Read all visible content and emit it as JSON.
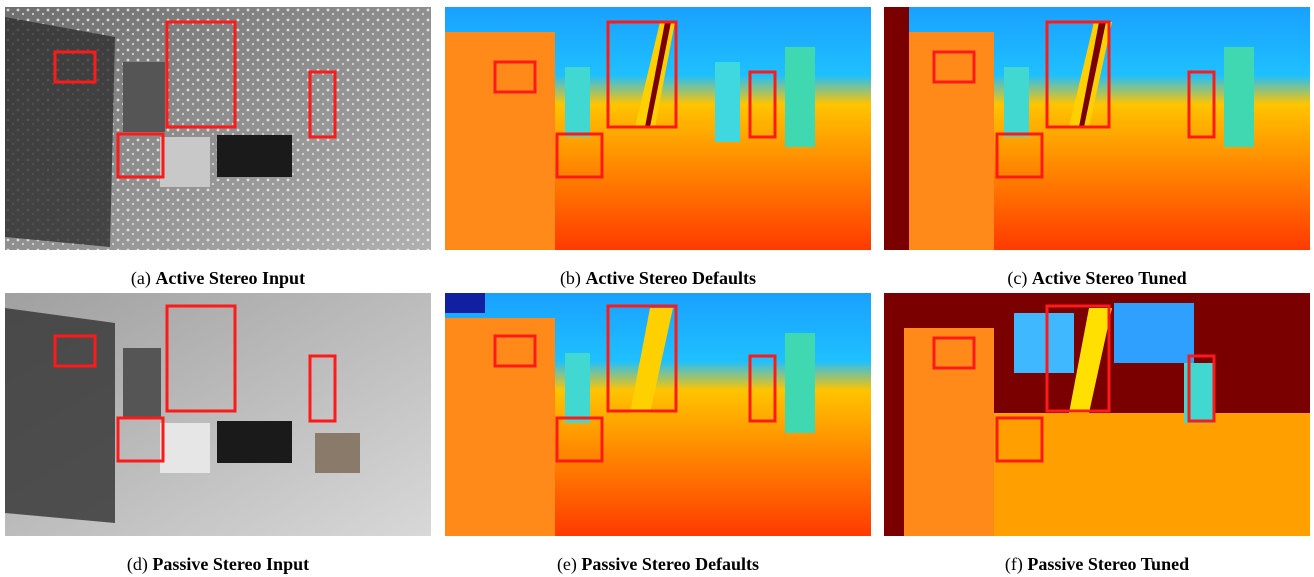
{
  "figure": {
    "panels": [
      {
        "id": "a",
        "prefix": "(a)",
        "title": "Active Stereo Input",
        "kind": "grayscale",
        "colors": {
          "base": "#8a8a8a",
          "highlight": "#ff1a1a"
        }
      },
      {
        "id": "b",
        "prefix": "(b)",
        "title": "Active Stereo Defaults",
        "kind": "depth-map"
      },
      {
        "id": "c",
        "prefix": "(c)",
        "title": "Active Stereo Tuned",
        "kind": "depth-map"
      },
      {
        "id": "d",
        "prefix": "(d)",
        "title": "Passive Stereo Input",
        "kind": "grayscale"
      },
      {
        "id": "e",
        "prefix": "(e)",
        "title": "Passive Stereo Defaults",
        "kind": "depth-map"
      },
      {
        "id": "f",
        "prefix": "(f)",
        "title": "Passive Stereo Tuned",
        "kind": "depth-map"
      }
    ],
    "colors": {
      "depth_near": "#ff3a00",
      "depth_mid": "#ffb000",
      "depth_far": "#1aa0ff",
      "invalid": "#7a0000",
      "highlight_box": "#ff1a1a"
    }
  }
}
